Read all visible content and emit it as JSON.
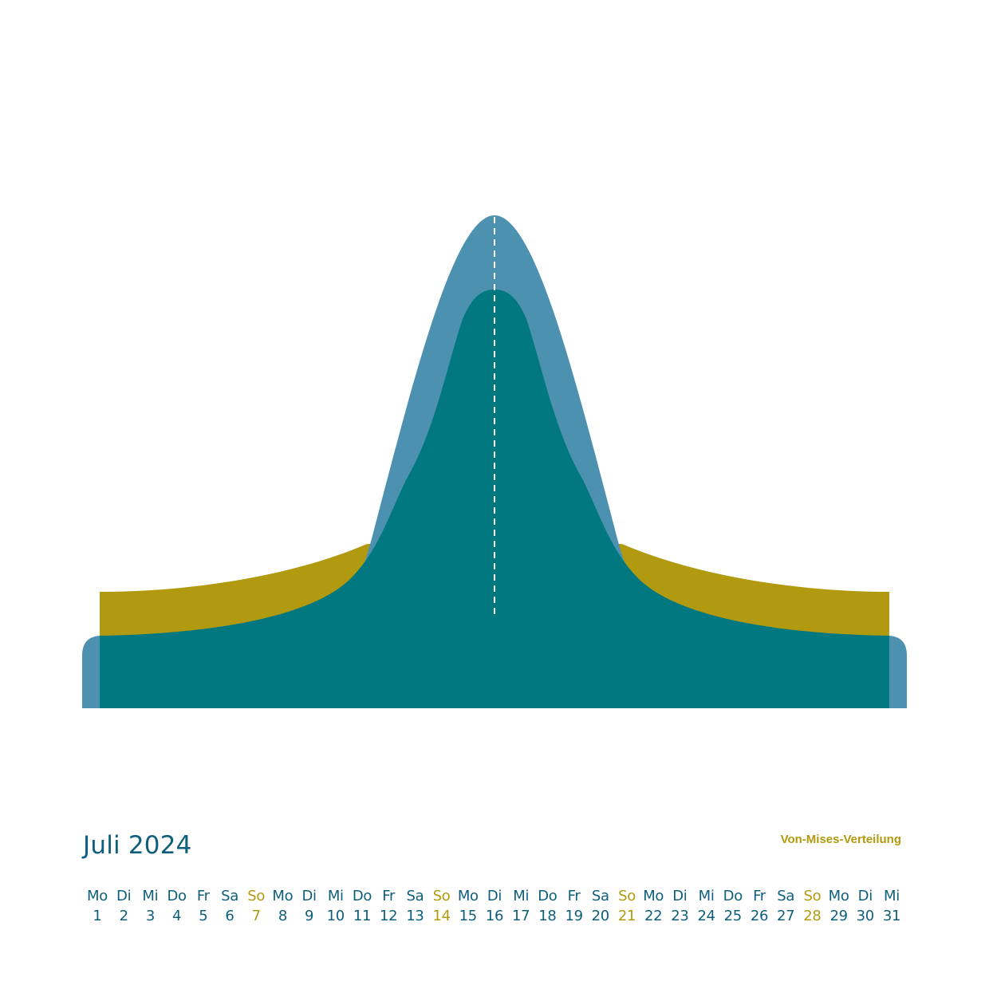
{
  "calendar": {
    "month_title": "Juli 2024",
    "distribution_label": "Von-Mises-Verteilung",
    "days": [
      {
        "weekday": "Mo",
        "day": "1",
        "sunday": false
      },
      {
        "weekday": "Di",
        "day": "2",
        "sunday": false
      },
      {
        "weekday": "Mi",
        "day": "3",
        "sunday": false
      },
      {
        "weekday": "Do",
        "day": "4",
        "sunday": false
      },
      {
        "weekday": "Fr",
        "day": "5",
        "sunday": false
      },
      {
        "weekday": "Sa",
        "day": "6",
        "sunday": false
      },
      {
        "weekday": "So",
        "day": "7",
        "sunday": true
      },
      {
        "weekday": "Mo",
        "day": "8",
        "sunday": false
      },
      {
        "weekday": "Di",
        "day": "9",
        "sunday": false
      },
      {
        "weekday": "Mi",
        "day": "10",
        "sunday": false
      },
      {
        "weekday": "Do",
        "day": "11",
        "sunday": false
      },
      {
        "weekday": "Fr",
        "day": "12",
        "sunday": false
      },
      {
        "weekday": "Sa",
        "day": "13",
        "sunday": false
      },
      {
        "weekday": "So",
        "day": "14",
        "sunday": true
      },
      {
        "weekday": "Mo",
        "day": "15",
        "sunday": false
      },
      {
        "weekday": "Di",
        "day": "16",
        "sunday": false
      },
      {
        "weekday": "Mi",
        "day": "17",
        "sunday": false
      },
      {
        "weekday": "Do",
        "day": "18",
        "sunday": false
      },
      {
        "weekday": "Fr",
        "day": "19",
        "sunday": false
      },
      {
        "weekday": "Sa",
        "day": "20",
        "sunday": false
      },
      {
        "weekday": "So",
        "day": "21",
        "sunday": true
      },
      {
        "weekday": "Mo",
        "day": "22",
        "sunday": false
      },
      {
        "weekday": "Di",
        "day": "23",
        "sunday": false
      },
      {
        "weekday": "Mi",
        "day": "24",
        "sunday": false
      },
      {
        "weekday": "Do",
        "day": "25",
        "sunday": false
      },
      {
        "weekday": "Fr",
        "day": "26",
        "sunday": false
      },
      {
        "weekday": "Sa",
        "day": "27",
        "sunday": false
      },
      {
        "weekday": "So",
        "day": "28",
        "sunday": true
      },
      {
        "weekday": "Mo",
        "day": "29",
        "sunday": false
      },
      {
        "weekday": "Di",
        "day": "30",
        "sunday": false
      },
      {
        "weekday": "Mi",
        "day": "31",
        "sunday": false
      }
    ]
  },
  "colors": {
    "weekday_text": "#0e5f7b",
    "sunday_text": "#b19a10",
    "steel_blue": "#4d91b1",
    "teal": "#017780",
    "ochre": "#b19a10",
    "background": "#ffffff"
  }
}
